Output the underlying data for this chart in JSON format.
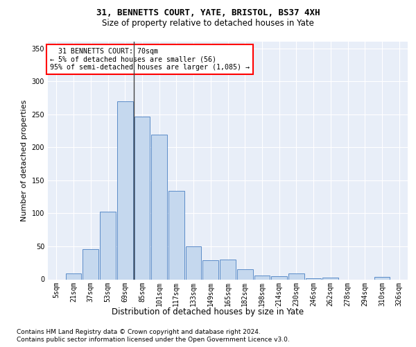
{
  "title1": "31, BENNETTS COURT, YATE, BRISTOL, BS37 4XH",
  "title2": "Size of property relative to detached houses in Yate",
  "xlabel": "Distribution of detached houses by size in Yate",
  "ylabel": "Number of detached properties",
  "footnote1": "Contains HM Land Registry data © Crown copyright and database right 2024.",
  "footnote2": "Contains public sector information licensed under the Open Government Licence v3.0.",
  "annotation_line1": "  31 BENNETTS COURT: 70sqm  ",
  "annotation_line2": "← 5% of detached houses are smaller (56)",
  "annotation_line3": "95% of semi-detached houses are larger (1,085) →",
  "bar_labels": [
    "5sqm",
    "21sqm",
    "37sqm",
    "53sqm",
    "69sqm",
    "85sqm",
    "101sqm",
    "117sqm",
    "133sqm",
    "149sqm",
    "165sqm",
    "182sqm",
    "198sqm",
    "214sqm",
    "230sqm",
    "246sqm",
    "262sqm",
    "278sqm",
    "294sqm",
    "310sqm",
    "326sqm"
  ],
  "bar_values": [
    0,
    9,
    46,
    103,
    270,
    246,
    219,
    134,
    50,
    29,
    30,
    15,
    6,
    5,
    9,
    2,
    3,
    0,
    0,
    4,
    0
  ],
  "bar_color": "#c5d8ee",
  "bar_edge_color": "#5b8cc8",
  "ylim": [
    0,
    360
  ],
  "yticks": [
    0,
    50,
    100,
    150,
    200,
    250,
    300,
    350
  ],
  "bg_color": "#e8eef8",
  "annotation_box_facecolor": "white",
  "annotation_box_edgecolor": "red",
  "vline_color": "#444444",
  "title1_fontsize": 9,
  "title2_fontsize": 8.5,
  "ylabel_fontsize": 8,
  "xlabel_fontsize": 8.5,
  "footnote_fontsize": 6.5,
  "tick_fontsize": 7
}
